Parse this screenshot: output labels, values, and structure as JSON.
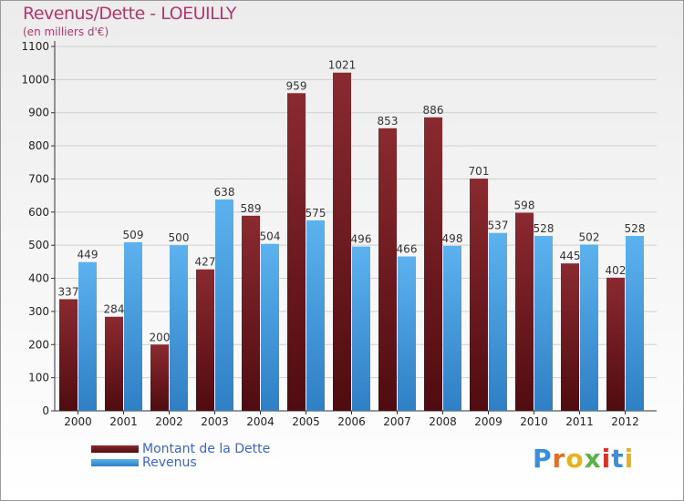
{
  "header": {
    "title": "Revenus/Dette - LOEUILLY",
    "subtitle": "(en milliers d'€)"
  },
  "logo": {
    "text": "Proxiti"
  },
  "colors": {
    "debt": "#7a1f24",
    "revenue": "#4fa6e6",
    "title": "#b3376e"
  },
  "chart_data": {
    "type": "bar",
    "title": "Revenus/Dette - LOEUILLY",
    "ylabel": "(en milliers d'€)",
    "xlabel": "",
    "ylim": [
      0,
      1100
    ],
    "yticks": [
      0,
      100,
      200,
      300,
      400,
      500,
      600,
      700,
      800,
      900,
      1000,
      1100
    ],
    "categories": [
      "2000",
      "2001",
      "2002",
      "2003",
      "2004",
      "2005",
      "2006",
      "2007",
      "2008",
      "2009",
      "2010",
      "2011",
      "2012"
    ],
    "series": [
      {
        "name": "Montant de la Dette",
        "values": [
          337,
          284,
          200,
          427,
          589,
          959,
          1021,
          853,
          886,
          701,
          598,
          445,
          402
        ]
      },
      {
        "name": "Revenus",
        "values": [
          449,
          509,
          500,
          638,
          504,
          575,
          496,
          466,
          498,
          537,
          528,
          502,
          528
        ]
      }
    ],
    "legend": "bottom-left"
  }
}
